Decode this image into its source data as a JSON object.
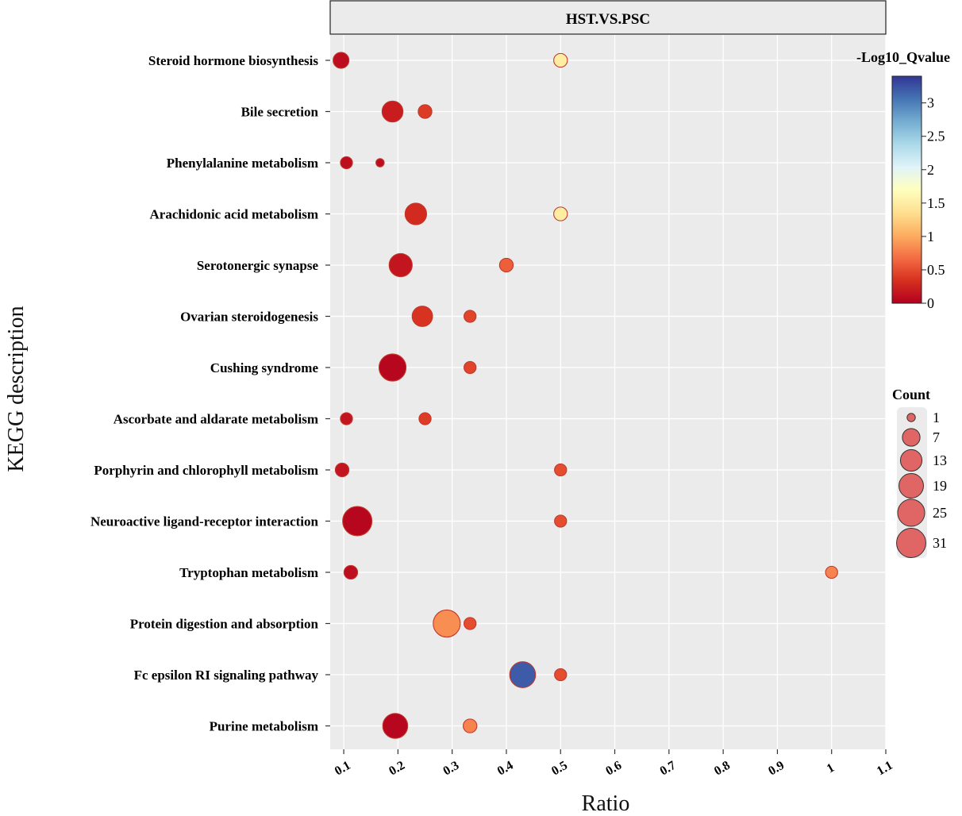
{
  "chart_data": {
    "type": "scatter",
    "facet_title": "HST.VS.PSC",
    "xlabel": "Ratio",
    "ylabel": "KEGG description",
    "xlim": [
      0.075,
      1.1
    ],
    "x_ticks": [
      "0.1",
      "0.2",
      "0.3",
      "0.4",
      "0.5",
      "0.6",
      "0.7",
      "0.8",
      "0.9",
      "1",
      "1.1"
    ],
    "grid": true,
    "categories": [
      "Steroid hormone biosynthesis",
      "Bile secretion",
      "Phenylalanine metabolism",
      "Arachidonic acid metabolism",
      "Serotonergic synapse",
      "Ovarian steroidogenesis",
      "Cushing syndrome",
      "Ascorbate and aldarate metabolism",
      "Porphyrin and chlorophyll metabolism",
      "Neuroactive ligand-receptor interaction",
      "Tryptophan metabolism",
      "Protein digestion and absorption",
      "Fc epsilon RI signaling pathway",
      "Purine metabolism"
    ],
    "points": [
      {
        "category": "Steroid hormone biosynthesis",
        "ratio": 0.095,
        "count": 5,
        "neg_log10_q": 0.1
      },
      {
        "category": "Steroid hormone biosynthesis",
        "ratio": 0.5,
        "count": 3,
        "neg_log10_q": 1.5
      },
      {
        "category": "Bile secretion",
        "ratio": 0.19,
        "count": 12,
        "neg_log10_q": 0.2
      },
      {
        "category": "Bile secretion",
        "ratio": 0.25,
        "count": 3,
        "neg_log10_q": 0.4
      },
      {
        "category": "Phenylalanine metabolism",
        "ratio": 0.105,
        "count": 2,
        "neg_log10_q": 0.1
      },
      {
        "category": "Phenylalanine metabolism",
        "ratio": 0.167,
        "count": 1,
        "neg_log10_q": 0.1
      },
      {
        "category": "Arachidonic acid metabolism",
        "ratio": 0.233,
        "count": 13,
        "neg_log10_q": 0.3
      },
      {
        "category": "Arachidonic acid metabolism",
        "ratio": 0.5,
        "count": 3,
        "neg_log10_q": 1.5
      },
      {
        "category": "Serotonergic synapse",
        "ratio": 0.205,
        "count": 16,
        "neg_log10_q": 0.15
      },
      {
        "category": "Serotonergic synapse",
        "ratio": 0.4,
        "count": 3,
        "neg_log10_q": 0.6
      },
      {
        "category": "Ovarian steroidogenesis",
        "ratio": 0.245,
        "count": 11,
        "neg_log10_q": 0.35
      },
      {
        "category": "Ovarian steroidogenesis",
        "ratio": 0.333,
        "count": 2,
        "neg_log10_q": 0.45
      },
      {
        "category": "Cushing syndrome",
        "ratio": 0.19,
        "count": 25,
        "neg_log10_q": 0.05
      },
      {
        "category": "Cushing syndrome",
        "ratio": 0.333,
        "count": 2,
        "neg_log10_q": 0.45
      },
      {
        "category": "Ascorbate and aldarate metabolism",
        "ratio": 0.105,
        "count": 2,
        "neg_log10_q": 0.15
      },
      {
        "category": "Ascorbate and aldarate metabolism",
        "ratio": 0.25,
        "count": 2,
        "neg_log10_q": 0.4
      },
      {
        "category": "Porphyrin and chlorophyll metabolism",
        "ratio": 0.097,
        "count": 3,
        "neg_log10_q": 0.15
      },
      {
        "category": "Porphyrin and chlorophyll metabolism",
        "ratio": 0.5,
        "count": 2,
        "neg_log10_q": 0.5
      },
      {
        "category": "Neuroactive ligand-receptor interaction",
        "ratio": 0.125,
        "count": 31,
        "neg_log10_q": 0.05
      },
      {
        "category": "Neuroactive ligand-receptor interaction",
        "ratio": 0.5,
        "count": 2,
        "neg_log10_q": 0.5
      },
      {
        "category": "Tryptophan metabolism",
        "ratio": 0.113,
        "count": 3,
        "neg_log10_q": 0.1
      },
      {
        "category": "Tryptophan metabolism",
        "ratio": 1.0,
        "count": 2,
        "neg_log10_q": 0.8
      },
      {
        "category": "Protein digestion and absorption",
        "ratio": 0.29,
        "count": 25,
        "neg_log10_q": 0.85
      },
      {
        "category": "Protein digestion and absorption",
        "ratio": 0.333,
        "count": 2,
        "neg_log10_q": 0.5
      },
      {
        "category": "Fc epsilon RI signaling pathway",
        "ratio": 0.43,
        "count": 22,
        "neg_log10_q": 3.2
      },
      {
        "category": "Fc epsilon RI signaling pathway",
        "ratio": 0.5,
        "count": 2,
        "neg_log10_q": 0.5
      },
      {
        "category": "Purine metabolism",
        "ratio": 0.195,
        "count": 20,
        "neg_log10_q": 0.05
      },
      {
        "category": "Purine metabolism",
        "ratio": 0.333,
        "count": 3,
        "neg_log10_q": 0.8
      }
    ],
    "color_legend": {
      "title": "-Log10_Qvalue",
      "min": 0,
      "max": 3.4,
      "ticks": [
        "0",
        "0.5",
        "1",
        "1.5",
        "2",
        "2.5",
        "3"
      ],
      "colors": [
        "#b2001f",
        "#d7301f",
        "#f46d43",
        "#fdae61",
        "#fee090",
        "#ffffbf",
        "#e0f3f8",
        "#abd9e9",
        "#74add1",
        "#4575b4",
        "#313695"
      ]
    },
    "size_legend": {
      "title": "Count",
      "values": [
        1,
        7,
        13,
        19,
        25,
        31
      ],
      "labels": [
        "1",
        "7",
        "13",
        "19",
        "25",
        "31"
      ]
    }
  }
}
